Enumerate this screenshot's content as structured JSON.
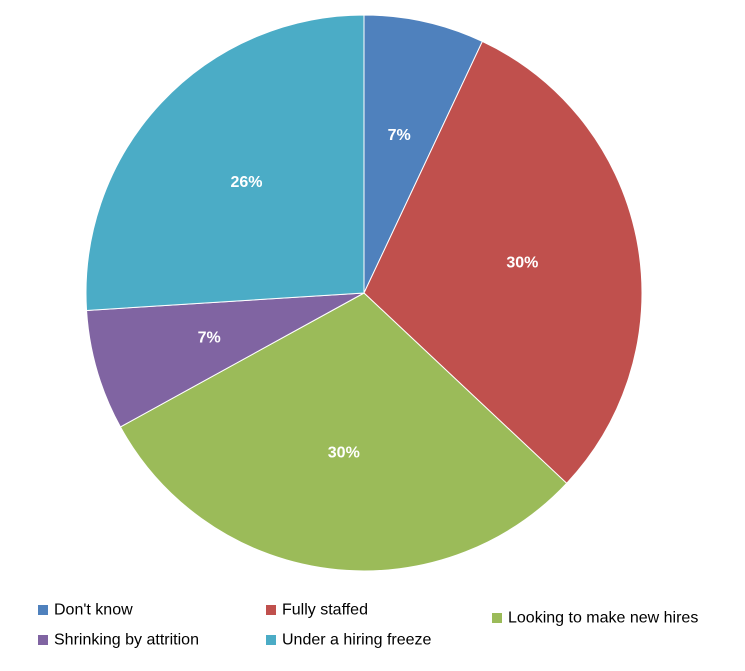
{
  "chart_data": {
    "type": "pie",
    "categories": [
      "Don't know",
      "Fully staffed",
      "Looking to make new hires",
      "Shrinking by attrition",
      "Under a hiring freeze"
    ],
    "values": [
      7,
      30,
      30,
      7,
      26
    ],
    "labels": [
      "7%",
      "30%",
      "30%",
      "7%",
      "26%"
    ],
    "colors": [
      "#4f81bd",
      "#c0504d",
      "#9bbb59",
      "#8064a2",
      "#4bacc6"
    ],
    "legend_position": "bottom",
    "start_angle": "top",
    "direction": "clockwise"
  }
}
